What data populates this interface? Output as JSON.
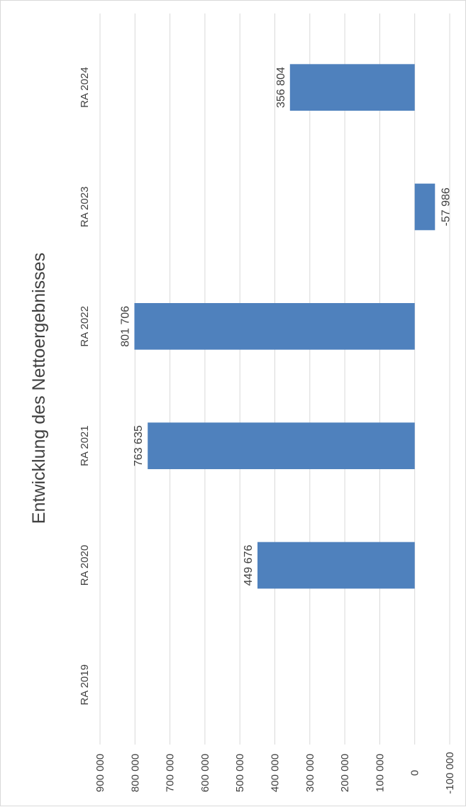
{
  "chart_data": {
    "type": "bar",
    "orientation": "rotated-90-counterclockwise",
    "title": "Entwicklung des Nettoergebnisses",
    "categories": [
      "RA 2019",
      "RA 2020",
      "RA 2021",
      "RA 2022",
      "RA 2023",
      "RA 2024"
    ],
    "values": [
      null,
      449676,
      763635,
      801706,
      -57986,
      356804
    ],
    "value_labels": [
      "",
      "449 676",
      "763 635",
      "801 706",
      "-57 986",
      "356 804"
    ],
    "ylim": [
      -100000,
      900000
    ],
    "ticks": [
      -100000,
      0,
      100000,
      200000,
      300000,
      400000,
      500000,
      600000,
      700000,
      800000,
      900000
    ],
    "tick_labels": [
      "-100 000",
      "0",
      "100 000",
      "200 000",
      "300 000",
      "400 000",
      "500 000",
      "600 000",
      "700 000",
      "800 000",
      "900 000"
    ],
    "grid": true,
    "legend": "none",
    "bar_color": "#4f81bd",
    "grid_color": "#d9d9d9",
    "text_color": "#404040"
  }
}
